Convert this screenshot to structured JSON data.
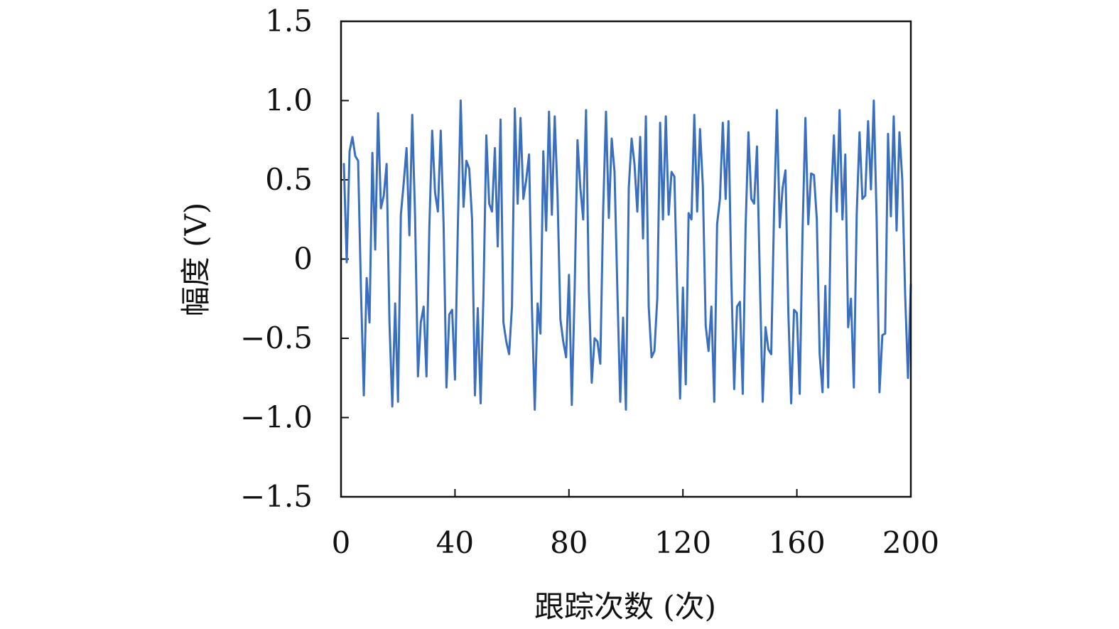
{
  "chart_data": {
    "type": "line",
    "title": "",
    "xlabel": "跟踪次数 (次)",
    "ylabel": "幅度 (V)",
    "xlim": [
      0,
      200
    ],
    "ylim": [
      -1.5,
      1.5
    ],
    "x_ticks": [
      0,
      40,
      80,
      120,
      160,
      200
    ],
    "x_tick_labels": [
      "0",
      "40",
      "80",
      "120",
      "160",
      "200"
    ],
    "y_ticks": [
      -1.5,
      -1.0,
      -0.5,
      0,
      0.5,
      1.0,
      1.5
    ],
    "y_tick_labels": [
      "−1.5",
      "−1.0",
      "−0.5",
      "0",
      "0.5",
      "1.0",
      "1.5"
    ],
    "grid": false,
    "legend": "none",
    "colors": {
      "line": "#3a6fbf",
      "axis": "#111111",
      "background": "#ffffff"
    },
    "series": [
      {
        "x": [
          1,
          2,
          3,
          4,
          5,
          6,
          7,
          8,
          9,
          10,
          11,
          12,
          13,
          14,
          15,
          16,
          17,
          18,
          19,
          20,
          21,
          22,
          23,
          24,
          25,
          26,
          27,
          28,
          29,
          30,
          31,
          32,
          33,
          34,
          35,
          36,
          37,
          38,
          39,
          40,
          41,
          42,
          43,
          44,
          45,
          46,
          47,
          48,
          49,
          50,
          51,
          52,
          53,
          54,
          55,
          56,
          57,
          58,
          59,
          60,
          61,
          62,
          63,
          64,
          65,
          66,
          67,
          68,
          69,
          70,
          71,
          72,
          73,
          74,
          75,
          76,
          77,
          78,
          79,
          80,
          81,
          82,
          83,
          84,
          85,
          86,
          87,
          88,
          89,
          90,
          91,
          92,
          93,
          94,
          95,
          96,
          97,
          98,
          99,
          100,
          101,
          102,
          103,
          104,
          105,
          106,
          107,
          108,
          109,
          110,
          111,
          112,
          113,
          114,
          115,
          116,
          117,
          118,
          119,
          120,
          121,
          122,
          123,
          124,
          125,
          126,
          127,
          128,
          129,
          130,
          131,
          132,
          133,
          134,
          135,
          136,
          137,
          138,
          139,
          140,
          141,
          142,
          143,
          144,
          145,
          146,
          147,
          148,
          149,
          150,
          151,
          152,
          153,
          154,
          155,
          156,
          157,
          158,
          159,
          160,
          161,
          162,
          163,
          164,
          165,
          166,
          167,
          168,
          169,
          170,
          171,
          172,
          173,
          174,
          175,
          176,
          177,
          178,
          179,
          180,
          181,
          182,
          183,
          184,
          185,
          186,
          187,
          188,
          189,
          190,
          191,
          192,
          193,
          194,
          195,
          196,
          197,
          198,
          199,
          200
        ],
        "values": [
          0.6,
          -0.02,
          0.68,
          0.77,
          0.65,
          0.62,
          -0.2,
          -0.86,
          -0.12,
          -0.4,
          0.67,
          0.06,
          0.92,
          0.32,
          0.4,
          0.6,
          -0.4,
          -0.93,
          -0.28,
          -0.9,
          0.28,
          0.48,
          0.7,
          0.15,
          0.91,
          0.26,
          -0.74,
          -0.4,
          -0.3,
          -0.74,
          0.2,
          0.81,
          0.42,
          0.3,
          0.81,
          0.22,
          -0.81,
          -0.35,
          -0.32,
          -0.76,
          0.2,
          1.0,
          0.33,
          0.62,
          0.57,
          0.25,
          -0.86,
          -0.31,
          -0.91,
          -0.22,
          0.78,
          0.35,
          0.3,
          0.7,
          0.08,
          0.88,
          -0.4,
          -0.52,
          -0.6,
          -0.3,
          0.95,
          0.35,
          0.89,
          0.38,
          0.5,
          0.66,
          -0.3,
          -0.95,
          -0.28,
          -0.47,
          0.68,
          0.18,
          0.93,
          0.28,
          0.9,
          0.4,
          -0.38,
          -0.52,
          -0.62,
          -0.1,
          -0.92,
          -0.2,
          0.75,
          0.45,
          0.25,
          0.94,
          -0.2,
          -0.78,
          -0.5,
          -0.52,
          -0.66,
          0.3,
          0.93,
          0.26,
          0.76,
          0.55,
          -0.2,
          -0.9,
          -0.37,
          -0.95,
          0.45,
          0.76,
          0.6,
          0.3,
          0.77,
          0.13,
          0.9,
          -0.3,
          -0.62,
          -0.58,
          -0.25,
          0.86,
          0.25,
          0.9,
          0.28,
          0.55,
          0.52,
          -0.2,
          -0.88,
          -0.18,
          -0.79,
          0.29,
          0.25,
          0.91,
          0.3,
          0.82,
          0.46,
          -0.42,
          -0.58,
          -0.3,
          -0.9,
          0.22,
          0.38,
          0.86,
          0.38,
          0.87,
          -0.13,
          -0.82,
          -0.3,
          -0.27,
          -0.85,
          0.2,
          0.8,
          0.38,
          0.35,
          0.71,
          -0.12,
          -0.9,
          -0.43,
          -0.57,
          -0.6,
          0.3,
          0.94,
          0.2,
          0.45,
          0.56,
          -0.33,
          -0.91,
          -0.32,
          -0.34,
          -0.85,
          0.18,
          0.89,
          0.22,
          0.54,
          0.53,
          0.25,
          -0.6,
          -0.84,
          -0.17,
          -0.81,
          0.37,
          0.78,
          0.3,
          0.94,
          0.25,
          0.66,
          -0.43,
          -0.25,
          -0.81,
          0.28,
          0.8,
          0.38,
          0.4,
          0.87,
          0.44,
          1.0,
          0.25,
          -0.84,
          -0.48,
          -0.47,
          0.79,
          0.27,
          0.9,
          0.18,
          0.8,
          0.5,
          -0.22,
          -0.75,
          -0.16
        ]
      }
    ]
  }
}
